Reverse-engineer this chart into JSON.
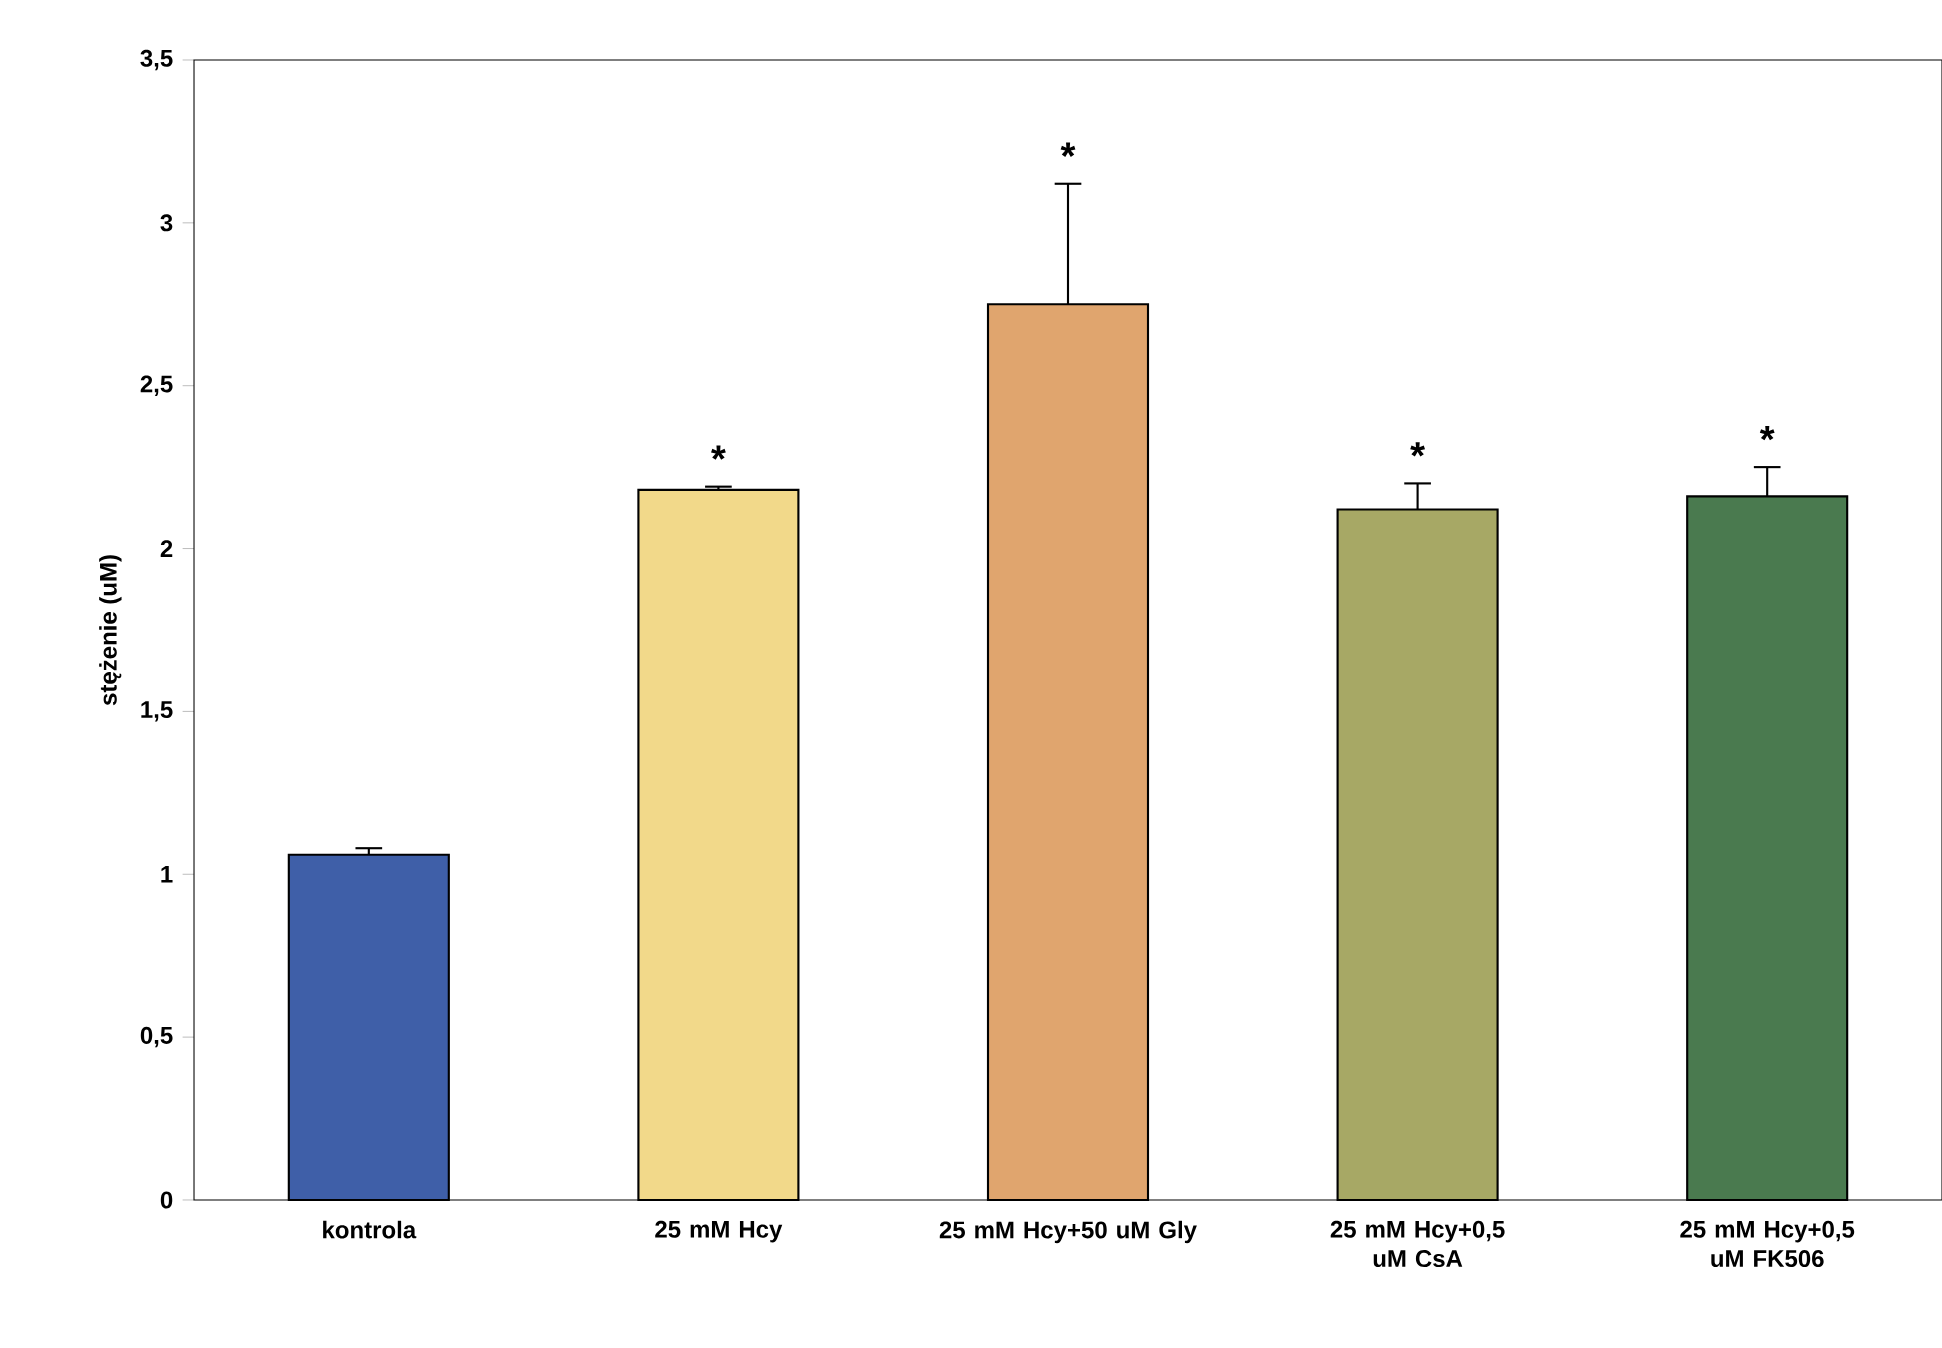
{
  "chart_data": {
    "type": "bar",
    "ylabel": "stężenie (uM)",
    "categories": [
      "kontrola",
      "25 mM Hcy",
      "25 mM Hcy+50 uM Gly",
      "25 mM Hcy+0,5 uM CsA",
      "25 mM Hcy+0,5 uM FK506"
    ],
    "values": [
      1.06,
      2.18,
      2.75,
      2.12,
      2.16
    ],
    "errors": [
      [
        1.06,
        1.08
      ],
      [
        2.18,
        2.19
      ],
      [
        2.75,
        3.12
      ],
      [
        2.12,
        2.2
      ],
      [
        2.16,
        2.25
      ]
    ],
    "colors": [
      "#3f5fa8",
      "#f2d98a",
      "#e0a56e",
      "#a7a865",
      "#4a7a4f"
    ],
    "ylim": [
      0,
      3.5
    ],
    "yticks": [
      {
        "value": 0,
        "label": "0"
      },
      {
        "value": 0.5,
        "label": "0,5"
      },
      {
        "value": 1,
        "label": "1"
      },
      {
        "value": 1.5,
        "label": "1,5"
      },
      {
        "value": 2,
        "label": "2"
      },
      {
        "value": 2.5,
        "label": "2,5"
      },
      {
        "value": 3,
        "label": "3"
      },
      {
        "value": 3.5,
        "label": "3,5"
      }
    ],
    "grid": false,
    "annotations": [
      {
        "text": "*",
        "x": "25 mM Hcy",
        "y": 2.19
      },
      {
        "text": "*",
        "x": "25 mM Hcy+50 uM Gly",
        "y": 3.12
      },
      {
        "text": "*",
        "x": "25 mM Hcy+0,5 uM CsA",
        "y": 2.2
      },
      {
        "text": "*",
        "x": "25 mM Hcy+0,5 uM FK506",
        "y": 2.25
      }
    ]
  }
}
